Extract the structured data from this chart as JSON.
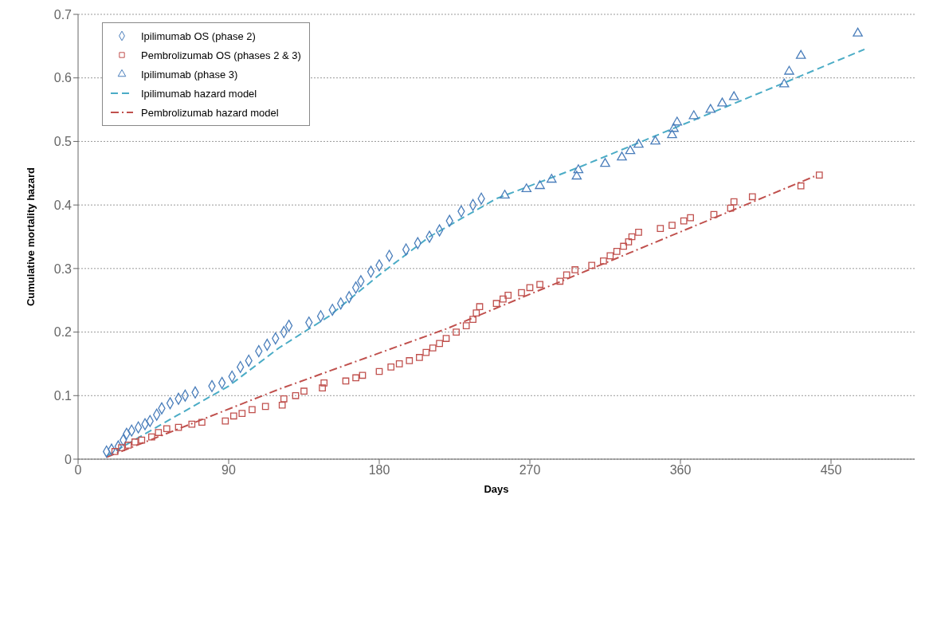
{
  "chart_data": {
    "type": "scatter",
    "xlabel": "Days",
    "ylabel": "Cumulative mortality hazard",
    "xlim": [
      0,
      500
    ],
    "xticks": [
      0,
      90,
      180,
      270,
      360,
      450
    ],
    "ylim": [
      0,
      0.7
    ],
    "yticks": [
      0,
      0.1,
      0.2,
      0.3,
      0.4,
      0.5,
      0.6,
      0.7
    ],
    "grid": "y",
    "legend": "top left",
    "series": [
      {
        "name": "Ipilimumab OS (phase 2)",
        "marker": "diamond",
        "color": "#4a7ebb",
        "x": [
          17,
          20,
          24,
          27,
          29,
          32,
          36,
          40,
          43,
          47,
          50,
          55,
          60,
          64,
          70,
          80,
          86,
          92,
          97,
          102,
          108,
          113,
          118,
          123,
          126,
          138,
          145,
          152,
          157,
          162,
          166,
          169,
          175,
          180,
          186,
          196,
          203,
          210,
          216,
          222,
          229,
          236,
          241
        ],
        "values": [
          0.012,
          0.015,
          0.02,
          0.03,
          0.04,
          0.045,
          0.05,
          0.055,
          0.06,
          0.07,
          0.08,
          0.088,
          0.095,
          0.1,
          0.105,
          0.115,
          0.12,
          0.13,
          0.145,
          0.155,
          0.17,
          0.18,
          0.19,
          0.2,
          0.21,
          0.215,
          0.225,
          0.235,
          0.245,
          0.255,
          0.27,
          0.28,
          0.295,
          0.305,
          0.32,
          0.33,
          0.34,
          0.35,
          0.36,
          0.375,
          0.39,
          0.4,
          0.41
        ]
      },
      {
        "name": "Pembrolizumab OS (phases 2 & 3)",
        "marker": "square",
        "color": "#c0504d",
        "x": [
          22,
          26,
          30,
          34,
          38,
          44,
          48,
          53,
          60,
          68,
          74,
          88,
          93,
          98,
          104,
          112,
          122,
          123,
          130,
          135,
          146,
          147,
          160,
          166,
          170,
          180,
          187,
          192,
          198,
          204,
          208,
          212,
          216,
          220,
          226,
          232,
          236,
          238,
          240,
          250,
          254,
          257,
          265,
          270,
          276,
          288,
          292,
          297,
          307,
          314,
          318,
          322,
          326,
          329,
          331,
          335,
          348,
          355,
          362,
          366,
          380,
          390,
          392,
          403,
          432,
          443
        ],
        "values": [
          0.012,
          0.018,
          0.022,
          0.027,
          0.03,
          0.035,
          0.042,
          0.048,
          0.05,
          0.055,
          0.058,
          0.06,
          0.068,
          0.072,
          0.078,
          0.083,
          0.085,
          0.095,
          0.1,
          0.107,
          0.112,
          0.12,
          0.123,
          0.128,
          0.132,
          0.138,
          0.145,
          0.15,
          0.155,
          0.16,
          0.168,
          0.175,
          0.182,
          0.19,
          0.2,
          0.21,
          0.22,
          0.23,
          0.24,
          0.245,
          0.252,
          0.258,
          0.262,
          0.27,
          0.275,
          0.28,
          0.29,
          0.298,
          0.305,
          0.312,
          0.32,
          0.327,
          0.335,
          0.342,
          0.35,
          0.357,
          0.363,
          0.368,
          0.375,
          0.38,
          0.385,
          0.395,
          0.405,
          0.413,
          0.43,
          0.447
        ]
      },
      {
        "name": "Ipilimumab (phase 3)",
        "marker": "triangle",
        "color": "#4a7ebb",
        "x": [
          255,
          268,
          276,
          283,
          298,
          299,
          315,
          325,
          330,
          335,
          345,
          355,
          356,
          358,
          368,
          378,
          385,
          392,
          422,
          425,
          432,
          466
        ],
        "values": [
          0.415,
          0.425,
          0.43,
          0.44,
          0.445,
          0.455,
          0.465,
          0.475,
          0.485,
          0.495,
          0.5,
          0.51,
          0.52,
          0.53,
          0.54,
          0.55,
          0.56,
          0.57,
          0.59,
          0.61,
          0.635,
          0.67
        ]
      },
      {
        "name": "Ipilimumab hazard model",
        "type": "line",
        "line_style": "dashed",
        "color": "#4bacc6",
        "x": [
          17,
          60,
          90,
          120,
          150,
          180,
          210,
          250,
          300,
          360,
          420,
          470
        ],
        "values": [
          0.005,
          0.07,
          0.115,
          0.175,
          0.225,
          0.29,
          0.35,
          0.41,
          0.46,
          0.525,
          0.59,
          0.645
        ]
      },
      {
        "name": "Pembrolizumab hazard model",
        "type": "line",
        "line_style": "dashdot",
        "color": "#c0504d",
        "x": [
          17,
          120,
          220,
          330,
          440
        ],
        "values": [
          0.003,
          0.11,
          0.205,
          0.325,
          0.445
        ]
      }
    ]
  }
}
